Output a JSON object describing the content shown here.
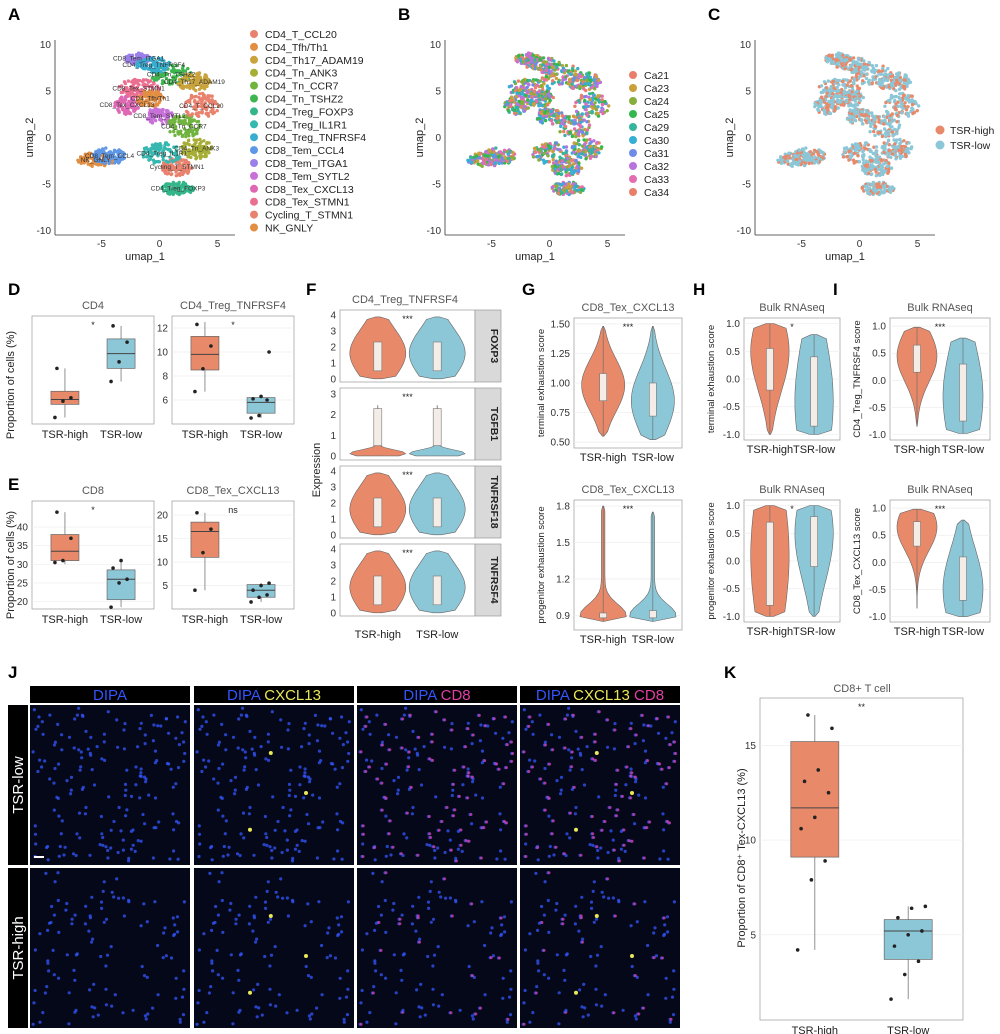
{
  "colors": {
    "high": "#E8896A",
    "low": "#8CC7D8",
    "clusters": [
      "#E8826E",
      "#E28E43",
      "#C9A33B",
      "#A7AE36",
      "#70B43F",
      "#3EB54E",
      "#35B68A",
      "#36B7B0",
      "#37ADD0",
      "#5E97E6",
      "#9A80E8",
      "#C771D9",
      "#DF68B4",
      "#EA6F90"
    ],
    "samples": [
      "#E97F6B",
      "#C9A13A",
      "#86AF3B",
      "#33B74F",
      "#35B59D",
      "#36AFD4",
      "#6F8BE8",
      "#B773DE",
      "#E36DB0"
    ],
    "dapi": "#3355FF",
    "cxcl13": "#E8E85A",
    "cd8": "#E03FA7"
  },
  "panels": {
    "A": {
      "label": "A",
      "xlabel": "umap_1",
      "ylabel": "umap_2",
      "xticks": [
        "-5",
        "0",
        "5"
      ],
      "yticks": [
        "10",
        "5",
        "0",
        "-5",
        "-10"
      ],
      "legend": [
        "CD4_T_CCL20",
        "CD4_Tfh/Th1",
        "CD4_Th17_ADAM19",
        "CD4_Tn_ANK3",
        "CD4_Tn_CCR7",
        "CD4_Tn_TSHZ2",
        "CD4_Treg_FOXP3",
        "CD4_Treg_IL1R1",
        "CD4_Treg_TNFRSF4",
        "CD8_Tem_CCL4",
        "CD8_Tem_ITGA1",
        "CD8_Tem_SYTL2",
        "CD8_Tex_CXCL13",
        "CD8_Tex_STMN1",
        "Cycling_T_STMN1",
        "NK_GNLY"
      ],
      "cluster_labels": [
        "NK_GNLY",
        "CD8_Tem_CCL4",
        "CD8_Tex_CXCL13",
        "CD8_Tem_ITGA1",
        "CD8_Tex_STMN1",
        "CD8_Tem_SYTL2",
        "CD4_Tn_CCR7",
        "CD4_T_CCL20",
        "CD4_Tn_ANK3",
        "CD4_Tn_TSHZ2",
        "CD4_Th17_ADAM19",
        "CD4_Tfh/Th1",
        "Cycling_T_STMN1",
        "CD4_Treg_IL1R1",
        "CD4_Treg_FOXP3",
        "CD4_Treg_TNFRSF4"
      ]
    },
    "B": {
      "label": "B",
      "xlabel": "umap_1",
      "ylabel": "umap_2",
      "xticks": [
        "-5",
        "0",
        "5"
      ],
      "yticks": [
        "10",
        "5",
        "0",
        "-5",
        "-10"
      ],
      "legend": [
        "Ca21",
        "Ca23",
        "Ca24",
        "Ca25",
        "Ca29",
        "Ca30",
        "Ca31",
        "Ca32",
        "Ca33",
        "Ca34"
      ]
    },
    "C": {
      "label": "C",
      "xlabel": "umap_1",
      "ylabel": "umap_2",
      "xticks": [
        "-5",
        "0",
        "5"
      ],
      "yticks": [
        "10",
        "5",
        "0",
        "-5",
        "-10"
      ],
      "legend": [
        "TSR-high",
        "TSR-low"
      ]
    },
    "D": {
      "label": "D",
      "ylabel": "Proportion of cells (%)"
    },
    "E": {
      "label": "E",
      "ylabel": "Proportion of cells (%)"
    },
    "F": {
      "label": "F",
      "title": "CD4_Treg_TNFRSF4",
      "ylabel": "Expression"
    },
    "G": {
      "label": "G"
    },
    "H": {
      "label": "H"
    },
    "I": {
      "label": "I"
    },
    "J": {
      "label": "J",
      "columns": [
        [
          {
            "t": "DIPA",
            "c": "dapi"
          }
        ],
        [
          {
            "t": "DIPA",
            "c": "dapi"
          },
          {
            "t": "CXCL13",
            "c": "cxcl13"
          }
        ],
        [
          {
            "t": "DIPA",
            "c": "dapi"
          },
          {
            "t": "CD8",
            "c": "cd8"
          }
        ],
        [
          {
            "t": "DIPA",
            "c": "dapi"
          },
          {
            "t": "CXCL13",
            "c": "cxcl13"
          },
          {
            "t": "CD8",
            "c": "cd8"
          }
        ]
      ],
      "rows": [
        "TSR-low",
        "TSR-high"
      ]
    },
    "K": {
      "label": "K",
      "title": "CD8+ T cell",
      "ylabel": "Proportion of CD8⁺ Tex-CXCL13 (%)"
    }
  },
  "chart_data": [
    {
      "id": "D1",
      "type": "box",
      "title": "CD4",
      "sig": "*",
      "categories": [
        "TSR-high",
        "TSR-low"
      ],
      "yticks": [],
      "ylim": [
        45,
        78
      ],
      "boxes": [
        {
          "q1": 51,
          "med": 52.5,
          "q3": 55,
          "lo": 47,
          "hi": 62,
          "pts": [
            47,
            52,
            53,
            62
          ]
        },
        {
          "q1": 62,
          "med": 66.5,
          "q3": 71,
          "lo": 58,
          "hi": 75,
          "pts": [
            58,
            64,
            70,
            75
          ]
        }
      ]
    },
    {
      "id": "D2",
      "type": "box",
      "title": "CD4_Treg_TNFRSF4",
      "sig": "*",
      "categories": [
        "TSR-high",
        "TSR-low"
      ],
      "yticks": [
        6,
        8,
        10,
        12
      ],
      "ylim": [
        4,
        13
      ],
      "boxes": [
        {
          "q1": 8.5,
          "med": 9.8,
          "q3": 11.3,
          "lo": 6.7,
          "hi": 12.5,
          "pts": [
            6.7,
            8.6,
            10.5,
            12.3
          ]
        },
        {
          "q1": 4.9,
          "med": 5.8,
          "q3": 6.2,
          "lo": 4.5,
          "hi": 6.3,
          "pts": [
            4.5,
            4.7,
            6.0,
            6.1,
            6.3,
            10.0
          ]
        }
      ]
    },
    {
      "id": "E1",
      "type": "box",
      "title": "CD8",
      "sig": "*",
      "categories": [
        "TSR-high",
        "TSR-low"
      ],
      "yticks": [
        20,
        25,
        30,
        35,
        40
      ],
      "ylim": [
        18,
        47
      ],
      "boxes": [
        {
          "q1": 31,
          "med": 33.5,
          "q3": 38,
          "lo": 30,
          "hi": 44,
          "pts": [
            30.5,
            31,
            37,
            44
          ]
        },
        {
          "q1": 20.5,
          "med": 26,
          "q3": 28.5,
          "lo": 18.5,
          "hi": 31.5,
          "pts": [
            18.5,
            25,
            26,
            29,
            31
          ]
        }
      ]
    },
    {
      "id": "E2",
      "type": "box",
      "title": "CD8_Tex_CXCL13",
      "sig": "ns",
      "categories": [
        "TSR-high",
        "TSR-low"
      ],
      "yticks": [
        5,
        10,
        15,
        20
      ],
      "ylim": [
        0,
        23
      ],
      "boxes": [
        {
          "q1": 11,
          "med": 16.5,
          "q3": 18.5,
          "lo": 4,
          "hi": 20.5,
          "pts": [
            4,
            12,
            17,
            20.5
          ]
        },
        {
          "q1": 2.5,
          "med": 4,
          "q3": 5.2,
          "lo": 1.5,
          "hi": 5.5,
          "pts": [
            1.5,
            2.5,
            3,
            4,
            5,
            5.5
          ]
        }
      ]
    },
    {
      "id": "F",
      "type": "violin",
      "sig": "***",
      "categories": [
        "TSR-high",
        "TSR-low"
      ],
      "genes": [
        {
          "name": "FOXP3",
          "yticks": [
            0,
            1,
            2,
            3,
            4
          ],
          "ylim": [
            -0.2,
            4.3
          ],
          "shape": "wide"
        },
        {
          "name": "TGFB1",
          "yticks": [
            0,
            1,
            2,
            3
          ],
          "ylim": [
            -0.2,
            3.3
          ],
          "shape": "spike"
        },
        {
          "name": "TNFRSF18",
          "yticks": [
            0,
            1,
            2,
            3,
            4
          ],
          "ylim": [
            -0.2,
            4.3
          ],
          "shape": "wide"
        },
        {
          "name": "TNFRSF4",
          "yticks": [
            0,
            1,
            2,
            3,
            4
          ],
          "ylim": [
            -0.2,
            4.3
          ],
          "shape": "wide"
        }
      ]
    },
    {
      "id": "G1",
      "type": "violin",
      "title": "CD8_Tex_CXCL13",
      "sig": "***",
      "ylabel": "terminal exhaustion score",
      "categories": [
        "TSR-high",
        "TSR-low"
      ],
      "yticks": [
        0.5,
        0.75,
        1.0,
        1.25,
        1.5
      ],
      "ylim": [
        0.45,
        1.55
      ],
      "violins": [
        {
          "lo": 0.55,
          "hi": 1.48,
          "q1": 0.85,
          "med": 0.98,
          "q3": 1.08
        },
        {
          "lo": 0.52,
          "hi": 1.48,
          "q1": 0.72,
          "med": 0.85,
          "q3": 1.0
        }
      ]
    },
    {
      "id": "G2",
      "type": "violin",
      "title": "CD8_Tex_CXCL13",
      "sig": "***",
      "ylabel": "progenitor exhaustion score",
      "categories": [
        "TSR-high",
        "TSR-low"
      ],
      "yticks": [
        0.9,
        1.2,
        1.5,
        1.8
      ],
      "ylim": [
        0.78,
        1.85
      ],
      "violins": [
        {
          "lo": 0.85,
          "hi": 1.8,
          "q1": 0.88,
          "med": 0.9,
          "q3": 0.92
        },
        {
          "lo": 0.85,
          "hi": 1.75,
          "q1": 0.88,
          "med": 0.9,
          "q3": 0.94
        }
      ]
    },
    {
      "id": "H1",
      "type": "violin",
      "title": "Bulk RNAseq",
      "sig": "*",
      "ylabel": "terminal exhaustion score",
      "categories": [
        "TSR-high",
        "TSR-low"
      ],
      "yticks": [
        -1.0,
        -0.5,
        0.0,
        0.5,
        1.0
      ],
      "ylim": [
        -1.1,
        1.1
      ],
      "violins": [
        {
          "lo": -1.0,
          "hi": 1.0,
          "q1": -0.2,
          "med": 0.5,
          "q3": 0.55
        },
        {
          "lo": -1.0,
          "hi": 0.8,
          "q1": -0.85,
          "med": -0.4,
          "q3": 0.4
        }
      ]
    },
    {
      "id": "H2",
      "type": "violin",
      "title": "Bulk RNAseq",
      "sig": "*",
      "ylabel": "progenitor exhaustion score",
      "categories": [
        "TSR-high",
        "TSR-low"
      ],
      "yticks": [
        -1.0,
        -0.5,
        0.0,
        0.5,
        1.0
      ],
      "ylim": [
        -1.1,
        1.1
      ],
      "violins": [
        {
          "lo": -1.0,
          "hi": 1.0,
          "q1": -0.8,
          "med": 0.1,
          "q3": 0.7
        },
        {
          "lo": -1.0,
          "hi": 1.0,
          "q1": -0.1,
          "med": 0.5,
          "q3": 0.8
        }
      ]
    },
    {
      "id": "I1",
      "type": "violin",
      "title": "Bulk RNAseq",
      "sig": "***",
      "ylabel": "CD4_Treg_TNFRSF4 score",
      "categories": [
        "TSR-high",
        "TSR-low"
      ],
      "yticks": [
        -1.0,
        -0.5,
        0.0,
        0.5,
        1.0
      ],
      "ylim": [
        -1.1,
        1.15
      ],
      "violins": [
        {
          "lo": -0.85,
          "hi": 0.98,
          "q1": 0.15,
          "med": 0.45,
          "q3": 0.65
        },
        {
          "lo": -0.98,
          "hi": 0.78,
          "q1": -0.75,
          "med": -0.3,
          "q3": 0.3
        }
      ]
    },
    {
      "id": "I2",
      "type": "violin",
      "title": "Bulk RNAseq",
      "sig": "***",
      "ylabel": "CD8_Tex_CXCL13 score",
      "categories": [
        "TSR-high",
        "TSR-low"
      ],
      "yticks": [
        -1.0,
        -0.5,
        0.0,
        0.5,
        1.0
      ],
      "ylim": [
        -1.1,
        1.15
      ],
      "violins": [
        {
          "lo": -0.85,
          "hi": 0.98,
          "q1": 0.3,
          "med": 0.65,
          "q3": 0.75
        },
        {
          "lo": -1.0,
          "hi": 0.78,
          "q1": -0.7,
          "med": -0.5,
          "q3": 0.1
        }
      ]
    },
    {
      "id": "K",
      "type": "box",
      "sig": "**",
      "categories": [
        "TSR-high",
        "TSR-low"
      ],
      "yticks": [
        5,
        10,
        15
      ],
      "ylim": [
        0.5,
        17.5
      ],
      "boxes": [
        {
          "q1": 9.1,
          "med": 11.7,
          "q3": 15.2,
          "lo": 4.2,
          "hi": 16.6,
          "pts": [
            4.2,
            7.9,
            8.9,
            10.6,
            11.2,
            12.5,
            13.1,
            13.7,
            15.9,
            16.6
          ]
        },
        {
          "q1": 3.7,
          "med": 5.2,
          "q3": 5.8,
          "lo": 1.6,
          "hi": 6.5,
          "pts": [
            1.6,
            2.9,
            3.6,
            4.4,
            5.0,
            5.2,
            5.9,
            6.4,
            6.5
          ]
        }
      ]
    }
  ]
}
